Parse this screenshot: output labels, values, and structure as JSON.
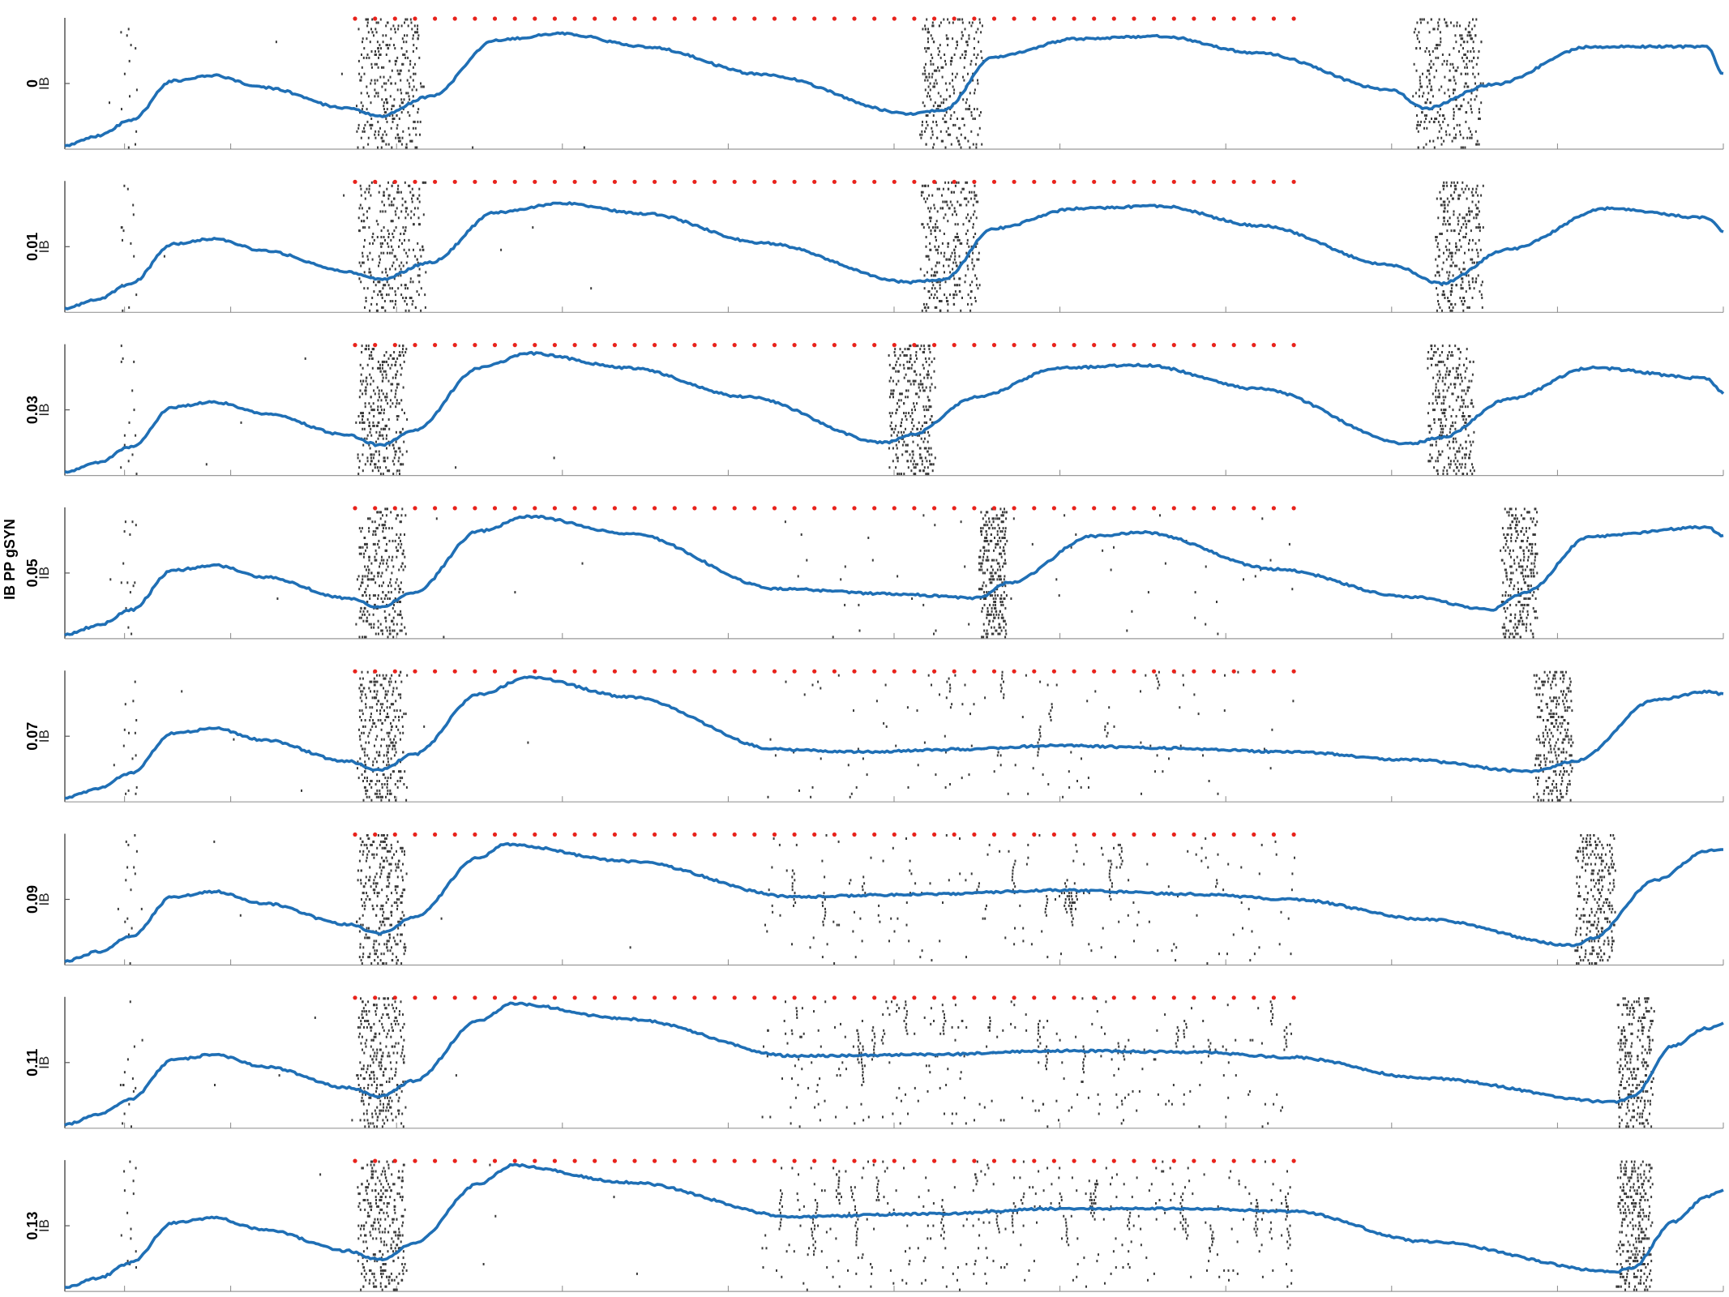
{
  "chart_data": {
    "type": "raster_with_line",
    "ylabel": "IB PP gSYN",
    "row_tick_label": "IB",
    "n_bins": 41,
    "colors": {
      "line": "#1f6fb5",
      "spikes": "#3a3a3a",
      "stim": "#e8231c",
      "axis": "#555555"
    },
    "rows": [
      {
        "label": "0",
        "bursts": [
          [
            17.5,
            21.6
          ],
          [
            51.5,
            55.5
          ],
          [
            81.2,
            85.5
          ]
        ],
        "line": [
          [
            0,
            3
          ],
          [
            2,
            10
          ],
          [
            4,
            22
          ],
          [
            6.5,
            52
          ],
          [
            9,
            56
          ],
          [
            12,
            47
          ],
          [
            17,
            31
          ],
          [
            19,
            25
          ],
          [
            22,
            40
          ],
          [
            26,
            83
          ],
          [
            30,
            88
          ],
          [
            35,
            78
          ],
          [
            42,
            57
          ],
          [
            51,
            27
          ],
          [
            53,
            30
          ],
          [
            56,
            70
          ],
          [
            61,
            84
          ],
          [
            66,
            86
          ],
          [
            72,
            73
          ],
          [
            80,
            45
          ],
          [
            82,
            31
          ],
          [
            86,
            49
          ],
          [
            92,
            78
          ],
          [
            99,
            78
          ],
          [
            100,
            57
          ]
        ]
      },
      {
        "label": "0.01",
        "bursts": [
          [
            17.5,
            21.8
          ],
          [
            51.5,
            55.2
          ],
          [
            82.5,
            85.5
          ]
        ],
        "line": [
          [
            0,
            3
          ],
          [
            2,
            10
          ],
          [
            4,
            22
          ],
          [
            6.5,
            52
          ],
          [
            9,
            56
          ],
          [
            12,
            47
          ],
          [
            17,
            31
          ],
          [
            19,
            25
          ],
          [
            22,
            38
          ],
          [
            26,
            76
          ],
          [
            30,
            83
          ],
          [
            35,
            75
          ],
          [
            42,
            53
          ],
          [
            51,
            23
          ],
          [
            53,
            25
          ],
          [
            56,
            64
          ],
          [
            61,
            79
          ],
          [
            66,
            81
          ],
          [
            72,
            66
          ],
          [
            80,
            36
          ],
          [
            83,
            22
          ],
          [
            87,
            48
          ],
          [
            93,
            79
          ],
          [
            99,
            72
          ],
          [
            100,
            62
          ]
        ]
      },
      {
        "label": "0.03",
        "bursts": [
          [
            17.5,
            20.6
          ],
          [
            49.5,
            52.5
          ],
          [
            82.0,
            85.0
          ]
        ],
        "line": [
          [
            0,
            3
          ],
          [
            2,
            10
          ],
          [
            4,
            22
          ],
          [
            6.5,
            52
          ],
          [
            9,
            56
          ],
          [
            12,
            47
          ],
          [
            17,
            31
          ],
          [
            19,
            23
          ],
          [
            21,
            34
          ],
          [
            25,
            82
          ],
          [
            28,
            93
          ],
          [
            34,
            82
          ],
          [
            41,
            60
          ],
          [
            49.5,
            25
          ],
          [
            51,
            31
          ],
          [
            55,
            60
          ],
          [
            60,
            82
          ],
          [
            65,
            84
          ],
          [
            72,
            66
          ],
          [
            81,
            24
          ],
          [
            83,
            29
          ],
          [
            87,
            58
          ],
          [
            92,
            82
          ],
          [
            99,
            74
          ],
          [
            100,
            63
          ]
        ]
      },
      {
        "label": "0.05",
        "bursts": [
          [
            17.5,
            20.6
          ],
          [
            55.0,
            56.8
          ],
          [
            86.5,
            88.8
          ]
        ],
        "line": [
          [
            0,
            3
          ],
          [
            2,
            10
          ],
          [
            4,
            22
          ],
          [
            6.5,
            52
          ],
          [
            9,
            56
          ],
          [
            12,
            47
          ],
          [
            17,
            31
          ],
          [
            19,
            24
          ],
          [
            21,
            35
          ],
          [
            25,
            82
          ],
          [
            28,
            93
          ],
          [
            34,
            80
          ],
          [
            43,
            38
          ],
          [
            50,
            34
          ],
          [
            55,
            31
          ],
          [
            57,
            43
          ],
          [
            62,
            78
          ],
          [
            65,
            81
          ],
          [
            73,
            53
          ],
          [
            81,
            32
          ],
          [
            86,
            22
          ],
          [
            88,
            35
          ],
          [
            92,
            78
          ],
          [
            99,
            85
          ],
          [
            100,
            78
          ]
        ]
      },
      {
        "label": "0.07",
        "bursts": [
          [
            17.5,
            20.6
          ],
          [
            88.5,
            91.0
          ]
        ],
        "line": [
          [
            0,
            3
          ],
          [
            2,
            10
          ],
          [
            4,
            22
          ],
          [
            6.5,
            52
          ],
          [
            9,
            56
          ],
          [
            12,
            47
          ],
          [
            17,
            31
          ],
          [
            19,
            24
          ],
          [
            21,
            36
          ],
          [
            25,
            82
          ],
          [
            28,
            95
          ],
          [
            34,
            80
          ],
          [
            43,
            40
          ],
          [
            48,
            38
          ],
          [
            54,
            40
          ],
          [
            60,
            43
          ],
          [
            66,
            41
          ],
          [
            74,
            38
          ],
          [
            81,
            32
          ],
          [
            88.5,
            23
          ],
          [
            91,
            31
          ],
          [
            96,
            78
          ],
          [
            99,
            84
          ],
          [
            100,
            82
          ]
        ]
      },
      {
        "label": "0.09",
        "bursts": [
          [
            17.5,
            20.6
          ],
          [
            91.0,
            93.5
          ]
        ],
        "line": [
          [
            0,
            3
          ],
          [
            2,
            10
          ],
          [
            4,
            22
          ],
          [
            6.5,
            52
          ],
          [
            9,
            56
          ],
          [
            12,
            47
          ],
          [
            17,
            31
          ],
          [
            19,
            24
          ],
          [
            21,
            36
          ],
          [
            25,
            82
          ],
          [
            26.5,
            92
          ],
          [
            34,
            79
          ],
          [
            44,
            52
          ],
          [
            52,
            54
          ],
          [
            60,
            57
          ],
          [
            68,
            54
          ],
          [
            74,
            50
          ],
          [
            82,
            35
          ],
          [
            91,
            15
          ],
          [
            92,
            20
          ],
          [
            96,
            65
          ],
          [
            99,
            87
          ],
          [
            100,
            88
          ]
        ]
      },
      {
        "label": "0.11",
        "bursts": [
          [
            17.5,
            20.6
          ],
          [
            93.5,
            95.8
          ]
        ],
        "line": [
          [
            0,
            3
          ],
          [
            2,
            10
          ],
          [
            4,
            22
          ],
          [
            6.5,
            52
          ],
          [
            9,
            56
          ],
          [
            12,
            47
          ],
          [
            17,
            31
          ],
          [
            19,
            24
          ],
          [
            21,
            36
          ],
          [
            25,
            82
          ],
          [
            27,
            95
          ],
          [
            34,
            83
          ],
          [
            44,
            55
          ],
          [
            52,
            56
          ],
          [
            60,
            59
          ],
          [
            68,
            58
          ],
          [
            74,
            54
          ],
          [
            82,
            38
          ],
          [
            93.5,
            20
          ],
          [
            94.5,
            24
          ],
          [
            97,
            63
          ],
          [
            99,
            76
          ],
          [
            100,
            80
          ]
        ]
      },
      {
        "label": "0.13",
        "bursts": [
          [
            17.5,
            20.6
          ],
          [
            93.5,
            95.8
          ]
        ],
        "line": [
          [
            0,
            3
          ],
          [
            2,
            10
          ],
          [
            4,
            22
          ],
          [
            6.5,
            52
          ],
          [
            9,
            56
          ],
          [
            12,
            47
          ],
          [
            17,
            31
          ],
          [
            19,
            24
          ],
          [
            21,
            36
          ],
          [
            25,
            82
          ],
          [
            27,
            96
          ],
          [
            34,
            83
          ],
          [
            44,
            57
          ],
          [
            52,
            59
          ],
          [
            60,
            63
          ],
          [
            68,
            63
          ],
          [
            74,
            61
          ],
          [
            82,
            38
          ],
          [
            93.5,
            15
          ],
          [
            94.5,
            18
          ],
          [
            97,
            53
          ],
          [
            99,
            72
          ],
          [
            100,
            77
          ]
        ]
      }
    ]
  }
}
